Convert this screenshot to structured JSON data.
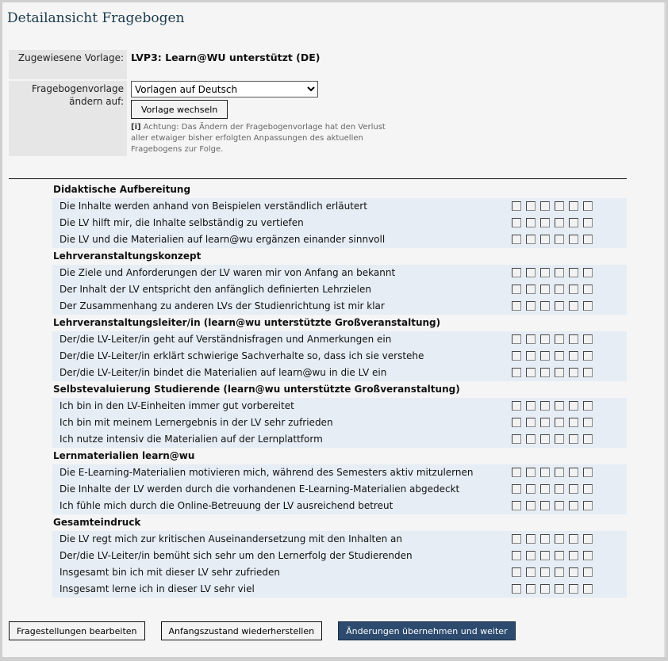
{
  "title": "Detailansicht Fragebogen",
  "meta": {
    "assigned_label": "Zugewiesene Vorlage:",
    "assigned_value": "LVP3: Learn@WU unterstützt (DE)",
    "change_label": "Fragebogenvorlage ändern auf:",
    "select_value": "Vorlagen auf Deutsch",
    "switch_button": "Vorlage wechseln",
    "warning_icon": "[i]",
    "warning": "Achtung: Das Ändern der Fragebogenvorlage hat den Verlust aller etwaiger bisher erfolgten Anpassungen des aktuellen Fragebogens zur Folge."
  },
  "sections": [
    {
      "title": "Didaktische Aufbereitung",
      "questions": [
        "Die Inhalte werden anhand von Beispielen verständlich erläutert",
        "Die LV hilft mir, die Inhalte selbständig zu vertiefen",
        "Die LV und die Materialien auf learn@wu ergänzen einander sinnvoll"
      ]
    },
    {
      "title": "Lehrveranstaltungskonzept",
      "questions": [
        "Die Ziele und Anforderungen der LV waren mir von Anfang an bekannt",
        "Der Inhalt der LV entspricht den anfänglich definierten Lehrzielen",
        "Der Zusammenhang zu anderen LVs der Studienrichtung ist mir klar"
      ]
    },
    {
      "title": "Lehrveranstaltungsleiter/in (learn@wu unterstützte Großveranstaltung)",
      "questions": [
        "Der/die LV-Leiter/in geht auf Verständnisfragen und Anmerkungen ein",
        "Der/die LV-Leiter/in erklärt schwierige Sachverhalte so, dass ich sie verstehe",
        "Der/die LV-Leiter/in bindet die Materialien auf learn@wu in die LV ein"
      ]
    },
    {
      "title": "Selbstevaluierung Studierende (learn@wu unterstützte Großveranstaltung)",
      "questions": [
        "Ich bin in den LV-Einheiten immer gut vorbereitet",
        "Ich bin mit meinem Lernergebnis in der LV sehr zufrieden",
        "Ich nutze intensiv die Materialien auf der Lernplattform"
      ]
    },
    {
      "title": "Lernmaterialien learn@wu",
      "questions": [
        "Die E-Learning-Materialien motivieren mich, während des Semesters aktiv mitzulernen",
        "Die Inhalte der LV werden durch die vorhandenen E-Learning-Materialien abgedeckt",
        "Ich fühle mich durch die Online-Betreuung der LV ausreichend betreut"
      ]
    },
    {
      "title": "Gesamteindruck",
      "questions": [
        "Die LV regt mich zur kritischen Auseinandersetzung mit den Inhalten an",
        "Der/die LV-Leiter/in bemüht sich sehr um den Lernerfolg der Studierenden",
        "Insgesamt bin ich mit dieser LV sehr zufrieden",
        "Insgesamt lerne ich in dieser LV sehr viel"
      ]
    }
  ],
  "checkbox_count": 6,
  "actions": {
    "edit": "Fragestellungen bearbeiten",
    "reset": "Anfangszustand wiederherstellen",
    "apply": "Änderungen übernehmen und weiter"
  },
  "colors": {
    "primary_button": "#2c4b6e",
    "row_bg": "#e6edf4",
    "title": "#1a3a4a"
  }
}
